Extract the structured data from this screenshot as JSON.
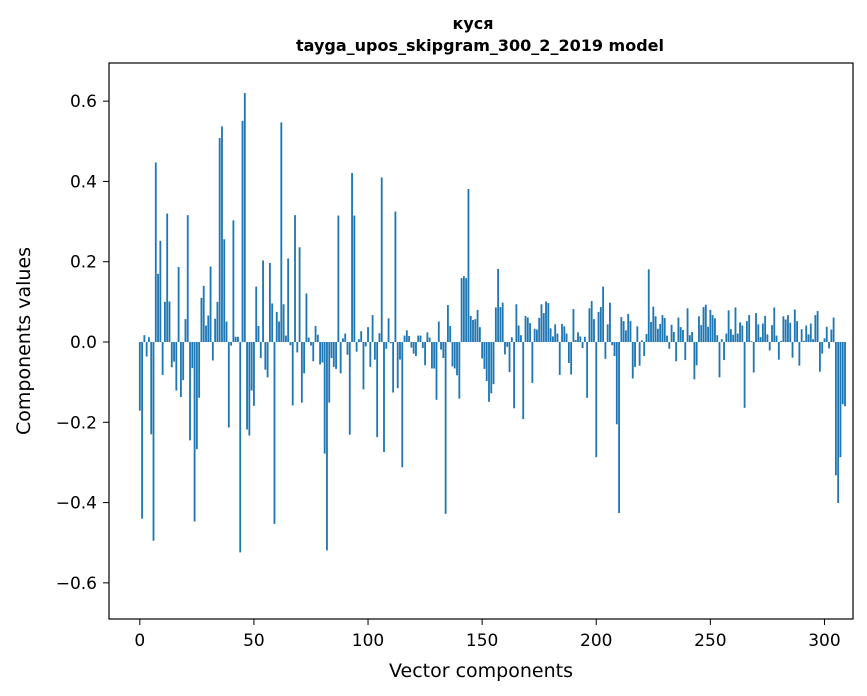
{
  "chart_data": {
    "type": "bar",
    "title": "куся",
    "subtitle": "tayga_upos_skipgram_300_2_2019 model",
    "xlabel": "Vector components",
    "ylabel": "Components values",
    "xlim": [
      -13.5,
      312.5
    ],
    "ylim": [
      -0.69,
      0.695
    ],
    "xticks": [
      0,
      50,
      100,
      150,
      200,
      250,
      300
    ],
    "xtick_labels": [
      "0",
      "50",
      "100",
      "150",
      "200",
      "250",
      "300"
    ],
    "yticks": [
      0.6,
      0.4,
      0.2,
      0.0,
      -0.2,
      -0.4,
      -0.6
    ],
    "ytick_labels": [
      "0.6",
      "0.4",
      "0.2",
      "0.0",
      "−0.2",
      "−0.4",
      "−0.6"
    ],
    "bar_color": "#1f77b4",
    "grid": false,
    "values": [
      -0.171,
      -0.44,
      0.017,
      -0.036,
      0.012,
      -0.23,
      -0.495,
      0.447,
      0.17,
      0.252,
      -0.082,
      0.1,
      0.32,
      0.101,
      -0.063,
      -0.049,
      -0.121,
      0.187,
      -0.137,
      -0.095,
      0.057,
      0.316,
      -0.245,
      -0.065,
      -0.447,
      -0.267,
      -0.139,
      0.11,
      0.14,
      0.041,
      0.066,
      0.188,
      -0.046,
      0.058,
      0.1,
      0.508,
      0.537,
      0.256,
      0.051,
      -0.213,
      -0.009,
      0.303,
      0.013,
      0.013,
      -0.524,
      0.551,
      0.62,
      -0.218,
      -0.233,
      -0.121,
      -0.159,
      0.138,
      0.04,
      -0.04,
      0.203,
      -0.069,
      -0.088,
      0.197,
      0.096,
      -0.453,
      0.075,
      0.051,
      0.547,
      0.094,
      0.016,
      0.208,
      -0.008,
      -0.158,
      0.316,
      -0.026,
      0.236,
      -0.151,
      -0.078,
      0.121,
      0.011,
      -0.009,
      -0.048,
      0.04,
      0.018,
      -0.056,
      -0.051,
      -0.278,
      -0.519,
      -0.151,
      -0.04,
      -0.062,
      -0.067,
      0.315,
      -0.078,
      0.009,
      0.021,
      -0.032,
      -0.231,
      0.421,
      0.315,
      -0.024,
      0.007,
      0.027,
      -0.118,
      -0.011,
      0.037,
      -0.062,
      0.067,
      -0.044,
      -0.237,
      0.022,
      0.41,
      -0.274,
      -0.017,
      0.059,
      -0.003,
      -0.126,
      0.325,
      -0.115,
      -0.044,
      -0.312,
      0.016,
      0.029,
      0.015,
      -0.014,
      -0.029,
      -0.035,
      0.016,
      0.016,
      -0.015,
      -0.058,
      0.024,
      0.011,
      -0.066,
      -0.066,
      -0.144,
      0.051,
      -0.019,
      -0.04,
      -0.428,
      0.092,
      0.04,
      -0.061,
      -0.066,
      -0.083,
      -0.141,
      0.159,
      0.164,
      0.159,
      0.381,
      0.065,
      0.055,
      0.057,
      0.08,
      0.037,
      -0.041,
      -0.067,
      -0.097,
      -0.149,
      -0.128,
      -0.105,
      0.086,
      0.182,
      0.087,
      0.098,
      -0.031,
      -0.012,
      -0.075,
      0.012,
      -0.165,
      0.094,
      0.041,
      0.017,
      -0.192,
      0.065,
      0.061,
      0.047,
      -0.102,
      0.033,
      0.031,
      0.06,
      0.094,
      0.072,
      0.101,
      0.097,
      0.034,
      0.014,
      0.044,
      0.021,
      -0.082,
      0.045,
      0.039,
      0.021,
      -0.052,
      -0.081,
      0.082,
      0.005,
      0.024,
      0.014,
      -0.015,
      0.013,
      -0.139,
      0.084,
      0.102,
      0.057,
      -0.287,
      0.075,
      0.087,
      0.138,
      -0.042,
      0.044,
      0.098,
      -0.008,
      -0.035,
      -0.205,
      -0.426,
      0.062,
      0.052,
      0.029,
      0.07,
      0.052,
      -0.091,
      -0.062,
      0.039,
      -0.059,
      0.004,
      -0.035,
      0.02,
      0.181,
      0.05,
      0.088,
      0.064,
      0.033,
      0.045,
      0.067,
      0.06,
      0.016,
      -0.017,
      0.043,
      0.025,
      -0.048,
      0.061,
      0.037,
      0.03,
      -0.045,
      0.084,
      0.017,
      0.025,
      -0.093,
      -0.058,
      0.064,
      0.042,
      0.087,
      0.093,
      0.038,
      0.08,
      0.067,
      0.059,
      0.017,
      -0.088,
      0.007,
      -0.045,
      0.021,
      0.079,
      0.032,
      0.018,
      0.086,
      0.021,
      0.049,
      0.041,
      -0.164,
      0.052,
      0.067,
      0.002,
      -0.076,
      0.072,
      0.044,
      0.012,
      0.046,
      0.065,
      0.019,
      -0.021,
      0.042,
      0.086,
      0.016,
      -0.044,
      0.003,
      0.064,
      0.056,
      0.067,
      0.048,
      -0.039,
      0.081,
      0.052,
      -0.059,
      0.032,
      0.003,
      0.041,
      0.019,
      0.046,
      0.007,
      0.067,
      0.077,
      -0.074,
      -0.029,
      0.009,
      0.038,
      -0.016,
      0.031,
      0.061,
      -0.332,
      -0.401,
      -0.287,
      -0.155,
      -0.16
    ]
  }
}
